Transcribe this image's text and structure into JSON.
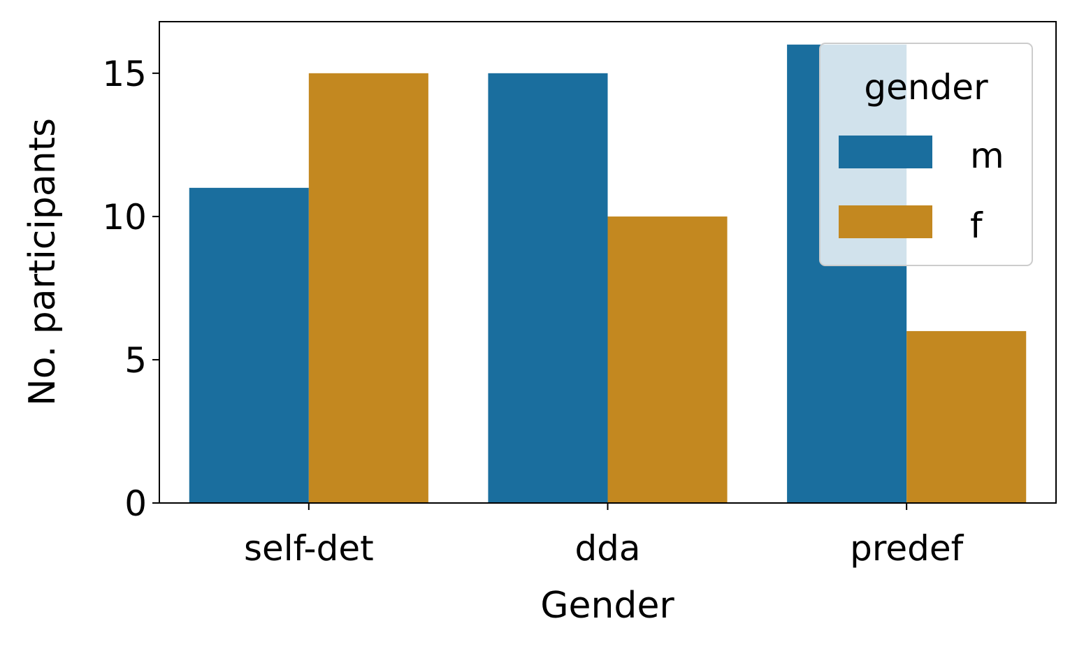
{
  "chart_data": {
    "type": "bar",
    "categories": [
      "self-det",
      "dda",
      "predef"
    ],
    "series": [
      {
        "name": "m",
        "values": [
          11,
          15,
          16
        ],
        "color": "#1a6e9e"
      },
      {
        "name": "f",
        "values": [
          15,
          10,
          6
        ],
        "color": "#c38820"
      }
    ],
    "xlabel": "Gender",
    "ylabel": "No. participants",
    "ylim": [
      0,
      16.8
    ],
    "yticks": [
      0,
      5,
      10,
      15
    ],
    "legend": {
      "title": "gender",
      "position": "top-right"
    },
    "grid": false
  }
}
